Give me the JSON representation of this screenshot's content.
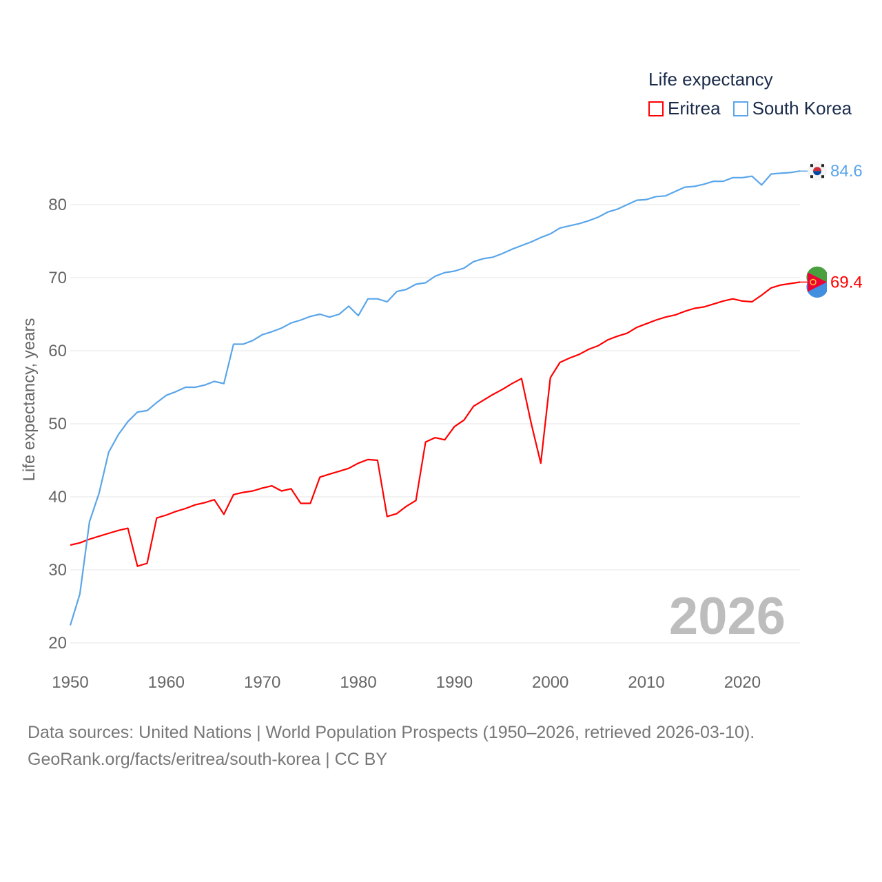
{
  "chart_data": {
    "type": "line",
    "title": "Life expectancy",
    "xlabel": "",
    "ylabel": "Life expectancy, years",
    "xlim": [
      1950,
      2026
    ],
    "ylim": [
      20,
      85
    ],
    "xticks": [
      1950,
      1960,
      1970,
      1980,
      1990,
      2000,
      2010,
      2020
    ],
    "yticks": [
      20,
      30,
      40,
      50,
      60,
      70,
      80
    ],
    "grid": true,
    "legend_placement": "top-right",
    "year_label": "2026",
    "series": [
      {
        "name": "Eritrea",
        "color": "#ff0000",
        "end_label": "69.4",
        "x_start": 1950,
        "values": [
          33.4,
          33.7,
          34.2,
          34.6,
          35.0,
          35.4,
          35.7,
          30.5,
          30.9,
          37.1,
          37.5,
          38.0,
          38.4,
          38.9,
          39.2,
          39.6,
          37.6,
          40.3,
          40.6,
          40.8,
          41.2,
          41.5,
          40.8,
          41.1,
          39.1,
          39.1,
          42.7,
          43.1,
          43.5,
          43.9,
          44.6,
          45.1,
          45.0,
          37.3,
          37.7,
          38.7,
          39.5,
          47.5,
          48.1,
          47.8,
          49.6,
          50.5,
          52.4,
          53.2,
          54.0,
          54.7,
          55.5,
          56.2,
          50.1,
          44.6,
          56.3,
          58.4,
          59.0,
          59.5,
          60.2,
          60.7,
          61.5,
          62.0,
          62.4,
          63.2,
          63.7,
          64.2,
          64.6,
          64.9,
          65.4,
          65.8,
          66.0,
          66.4,
          66.8,
          67.1,
          66.8,
          66.7,
          67.6,
          68.6,
          69.0,
          69.2,
          69.4
        ]
      },
      {
        "name": "South Korea",
        "color": "#5aa5ea",
        "end_label": "84.6",
        "x_start": 1950,
        "values": [
          22.4,
          26.7,
          36.6,
          40.5,
          46.1,
          48.5,
          50.3,
          51.6,
          51.8,
          52.9,
          53.9,
          54.4,
          55.0,
          55.0,
          55.3,
          55.8,
          55.5,
          60.9,
          60.9,
          61.4,
          62.2,
          62.6,
          63.1,
          63.8,
          64.2,
          64.7,
          65.0,
          64.6,
          65.0,
          66.1,
          64.8,
          67.1,
          67.1,
          66.7,
          68.1,
          68.4,
          69.1,
          69.3,
          70.2,
          70.7,
          70.9,
          71.3,
          72.2,
          72.6,
          72.8,
          73.3,
          73.9,
          74.4,
          74.9,
          75.5,
          76.0,
          76.8,
          77.1,
          77.4,
          77.8,
          78.3,
          79.0,
          79.4,
          80.0,
          80.6,
          80.7,
          81.1,
          81.2,
          81.8,
          82.4,
          82.5,
          82.8,
          83.2,
          83.2,
          83.7,
          83.7,
          83.9,
          82.7,
          84.2,
          84.3,
          84.4,
          84.6
        ]
      }
    ]
  },
  "footer": {
    "source_line": "Data sources: United Nations | World Population Prospects (1950–2026, retrieved 2026-03-10).",
    "credit_line": "GeoRank.org/facts/eritrea/south-korea | CC BY"
  }
}
